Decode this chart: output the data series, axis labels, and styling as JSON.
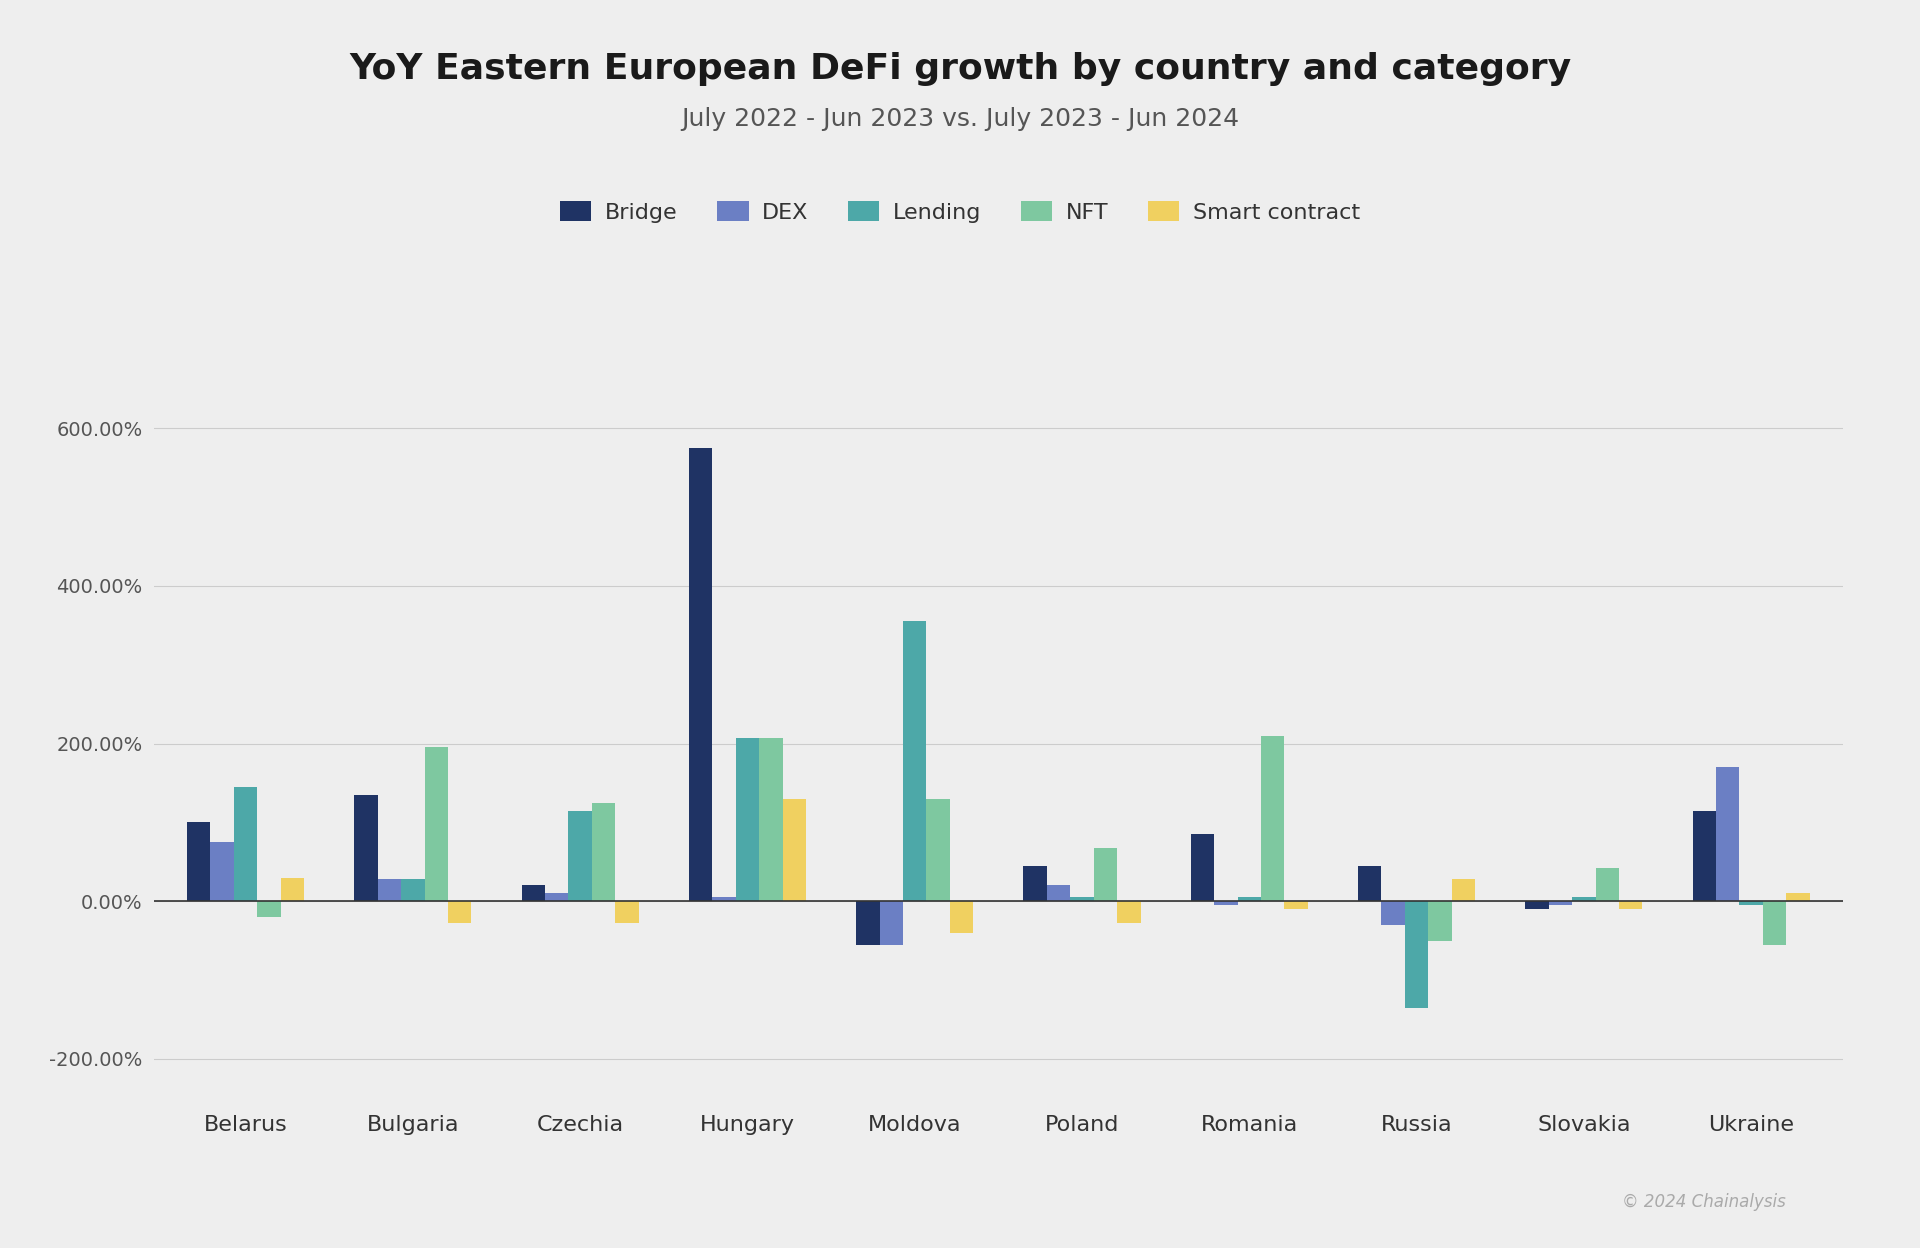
{
  "title": "YoY Eastern European DeFi growth by country and category",
  "subtitle": "July 2022 - Jun 2023 vs. July 2023 - Jun 2024",
  "categories": [
    "Belarus",
    "Bulgaria",
    "Czechia",
    "Hungary",
    "Moldova",
    "Poland",
    "Romania",
    "Russia",
    "Slovakia",
    "Ukraine"
  ],
  "series": {
    "Bridge": [
      100,
      135,
      20,
      575,
      -55,
      45,
      85,
      45,
      -10,
      115
    ],
    "DEX": [
      75,
      28,
      10,
      5,
      -55,
      20,
      -5,
      -30,
      -5,
      170
    ],
    "Lending": [
      145,
      28,
      115,
      207,
      355,
      5,
      5,
      -135,
      5,
      -5
    ],
    "NFT": [
      -20,
      195,
      125,
      207,
      130,
      68,
      210,
      -50,
      42,
      -55
    ],
    "Smart contract": [
      30,
      -28,
      -28,
      130,
      -40,
      -28,
      -10,
      28,
      -10,
      10
    ]
  },
  "colors": {
    "Bridge": "#1f3364",
    "DEX": "#6b7fc4",
    "Lending": "#4da8a8",
    "NFT": "#7ec8a0",
    "Smart contract": "#f0d060"
  },
  "ylim": [
    -250,
    700
  ],
  "yticks": [
    -200,
    0,
    200,
    400,
    600
  ],
  "background_color": "#eeeeee",
  "copyright": "© 2024 Chainalysis",
  "bar_width": 0.14
}
